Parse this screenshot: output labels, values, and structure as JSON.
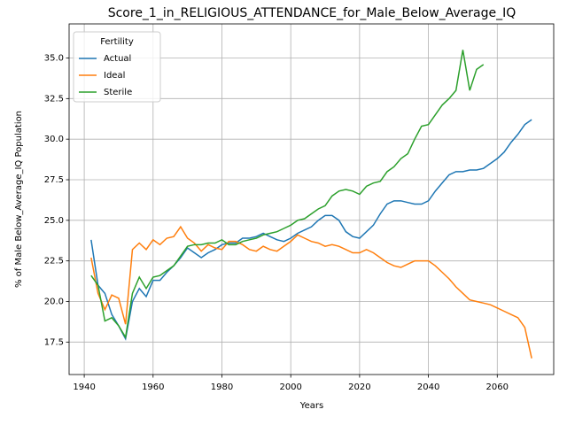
{
  "chart_data": {
    "type": "line",
    "title": "Score_1_in_RELIGIOUS_ATTENDANCE_for_Male_Below_Average_IQ",
    "x_label": "Years",
    "y_label": "% of Male Below_Average_IQ Population",
    "legend_title": "Fertility",
    "legend": "upper left",
    "grid": true,
    "xlim": [
      1935.6,
      2076.4
    ],
    "ylim": [
      15.5,
      37.1
    ],
    "xticks": [
      1940,
      1960,
      1980,
      2000,
      2020,
      2040,
      2060
    ],
    "yticks": [
      17.5,
      {
        "value": 20,
        "label": "20.0"
      },
      22.5,
      {
        "value": 25,
        "label": "25.0"
      },
      27.5,
      {
        "value": 30,
        "label": "30.0"
      },
      32.5,
      {
        "value": 35,
        "label": "35.0"
      }
    ],
    "x": [
      1942,
      1944,
      1946,
      1948,
      1950,
      1952,
      1954,
      1956,
      1958,
      1960,
      1962,
      1964,
      1966,
      1968,
      1970,
      1972,
      1974,
      1976,
      1978,
      1980,
      1982,
      1984,
      1986,
      1988,
      1990,
      1992,
      1994,
      1996,
      1998,
      2000,
      2002,
      2004,
      2006,
      2008,
      2010,
      2012,
      2014,
      2016,
      2018,
      2020,
      2022,
      2024,
      2026,
      2028,
      2030,
      2032,
      2034,
      2036,
      2038,
      2040,
      2042,
      2044,
      2046,
      2048,
      2050,
      2052,
      2054,
      2056,
      2058,
      2060,
      2062,
      2064,
      2066,
      2068,
      2070
    ],
    "series": [
      {
        "name": "Actual",
        "color": "#1f77b4",
        "values": [
          23.8,
          21.0,
          20.5,
          19.2,
          18.5,
          17.7,
          20.0,
          20.8,
          20.3,
          21.3,
          21.3,
          21.8,
          22.2,
          22.7,
          23.3,
          23.0,
          22.7,
          23.0,
          23.2,
          23.5,
          23.6,
          23.6,
          23.9,
          23.9,
          24.0,
          24.2,
          24.0,
          23.8,
          23.7,
          23.9,
          24.2,
          24.4,
          24.6,
          25.0,
          25.3,
          25.3,
          25.0,
          24.3,
          24.0,
          23.9,
          24.3,
          24.7,
          25.4,
          26.0,
          26.2,
          26.2,
          26.1,
          26.0,
          26.0,
          26.2,
          26.8,
          27.3,
          27.8,
          28.0,
          28.0,
          28.1,
          28.1,
          28.2,
          28.5,
          28.8,
          29.2,
          29.8,
          30.3,
          30.9,
          31.2
        ]
      },
      {
        "name": "Ideal",
        "color": "#ff7f0e",
        "values": [
          22.7,
          20.5,
          19.5,
          20.4,
          20.2,
          18.6,
          23.2,
          23.6,
          23.2,
          23.8,
          23.5,
          23.9,
          24.0,
          24.6,
          23.9,
          23.6,
          23.1,
          23.5,
          23.3,
          23.2,
          23.7,
          23.7,
          23.5,
          23.2,
          23.1,
          23.4,
          23.2,
          23.1,
          23.4,
          23.7,
          24.1,
          23.9,
          23.7,
          23.6,
          23.4,
          23.5,
          23.4,
          23.2,
          23.0,
          23.0,
          23.2,
          23.0,
          22.7,
          22.4,
          22.2,
          22.1,
          22.3,
          22.5,
          22.5,
          22.5,
          22.2,
          21.8,
          21.4,
          20.9,
          20.5,
          20.1,
          20.0,
          19.9,
          19.8,
          19.6,
          19.4,
          19.2,
          19.0,
          18.4,
          16.5
        ]
      },
      {
        "name": "Sterile",
        "color": "#2ca02c",
        "values": [
          21.6,
          21.0,
          18.8,
          19.0,
          18.5,
          17.8,
          20.5,
          21.5,
          20.8,
          21.5,
          21.6,
          21.9,
          22.2,
          22.8,
          23.4,
          23.5,
          23.5,
          23.6,
          23.6,
          23.8,
          23.5,
          23.5,
          23.7,
          23.8,
          23.9,
          24.1,
          24.2,
          24.3,
          24.5,
          24.7,
          25.0,
          25.1,
          25.4,
          25.7,
          25.9,
          26.5,
          26.8,
          26.9,
          26.8,
          26.6,
          27.1,
          27.3,
          27.4,
          28.0,
          28.3,
          28.8,
          29.1,
          30.0,
          30.8,
          30.9,
          31.5,
          32.1,
          32.5,
          33.0,
          35.5,
          33.0,
          34.3,
          34.6,
          null,
          null,
          null,
          null,
          null,
          null,
          null
        ]
      }
    ]
  }
}
